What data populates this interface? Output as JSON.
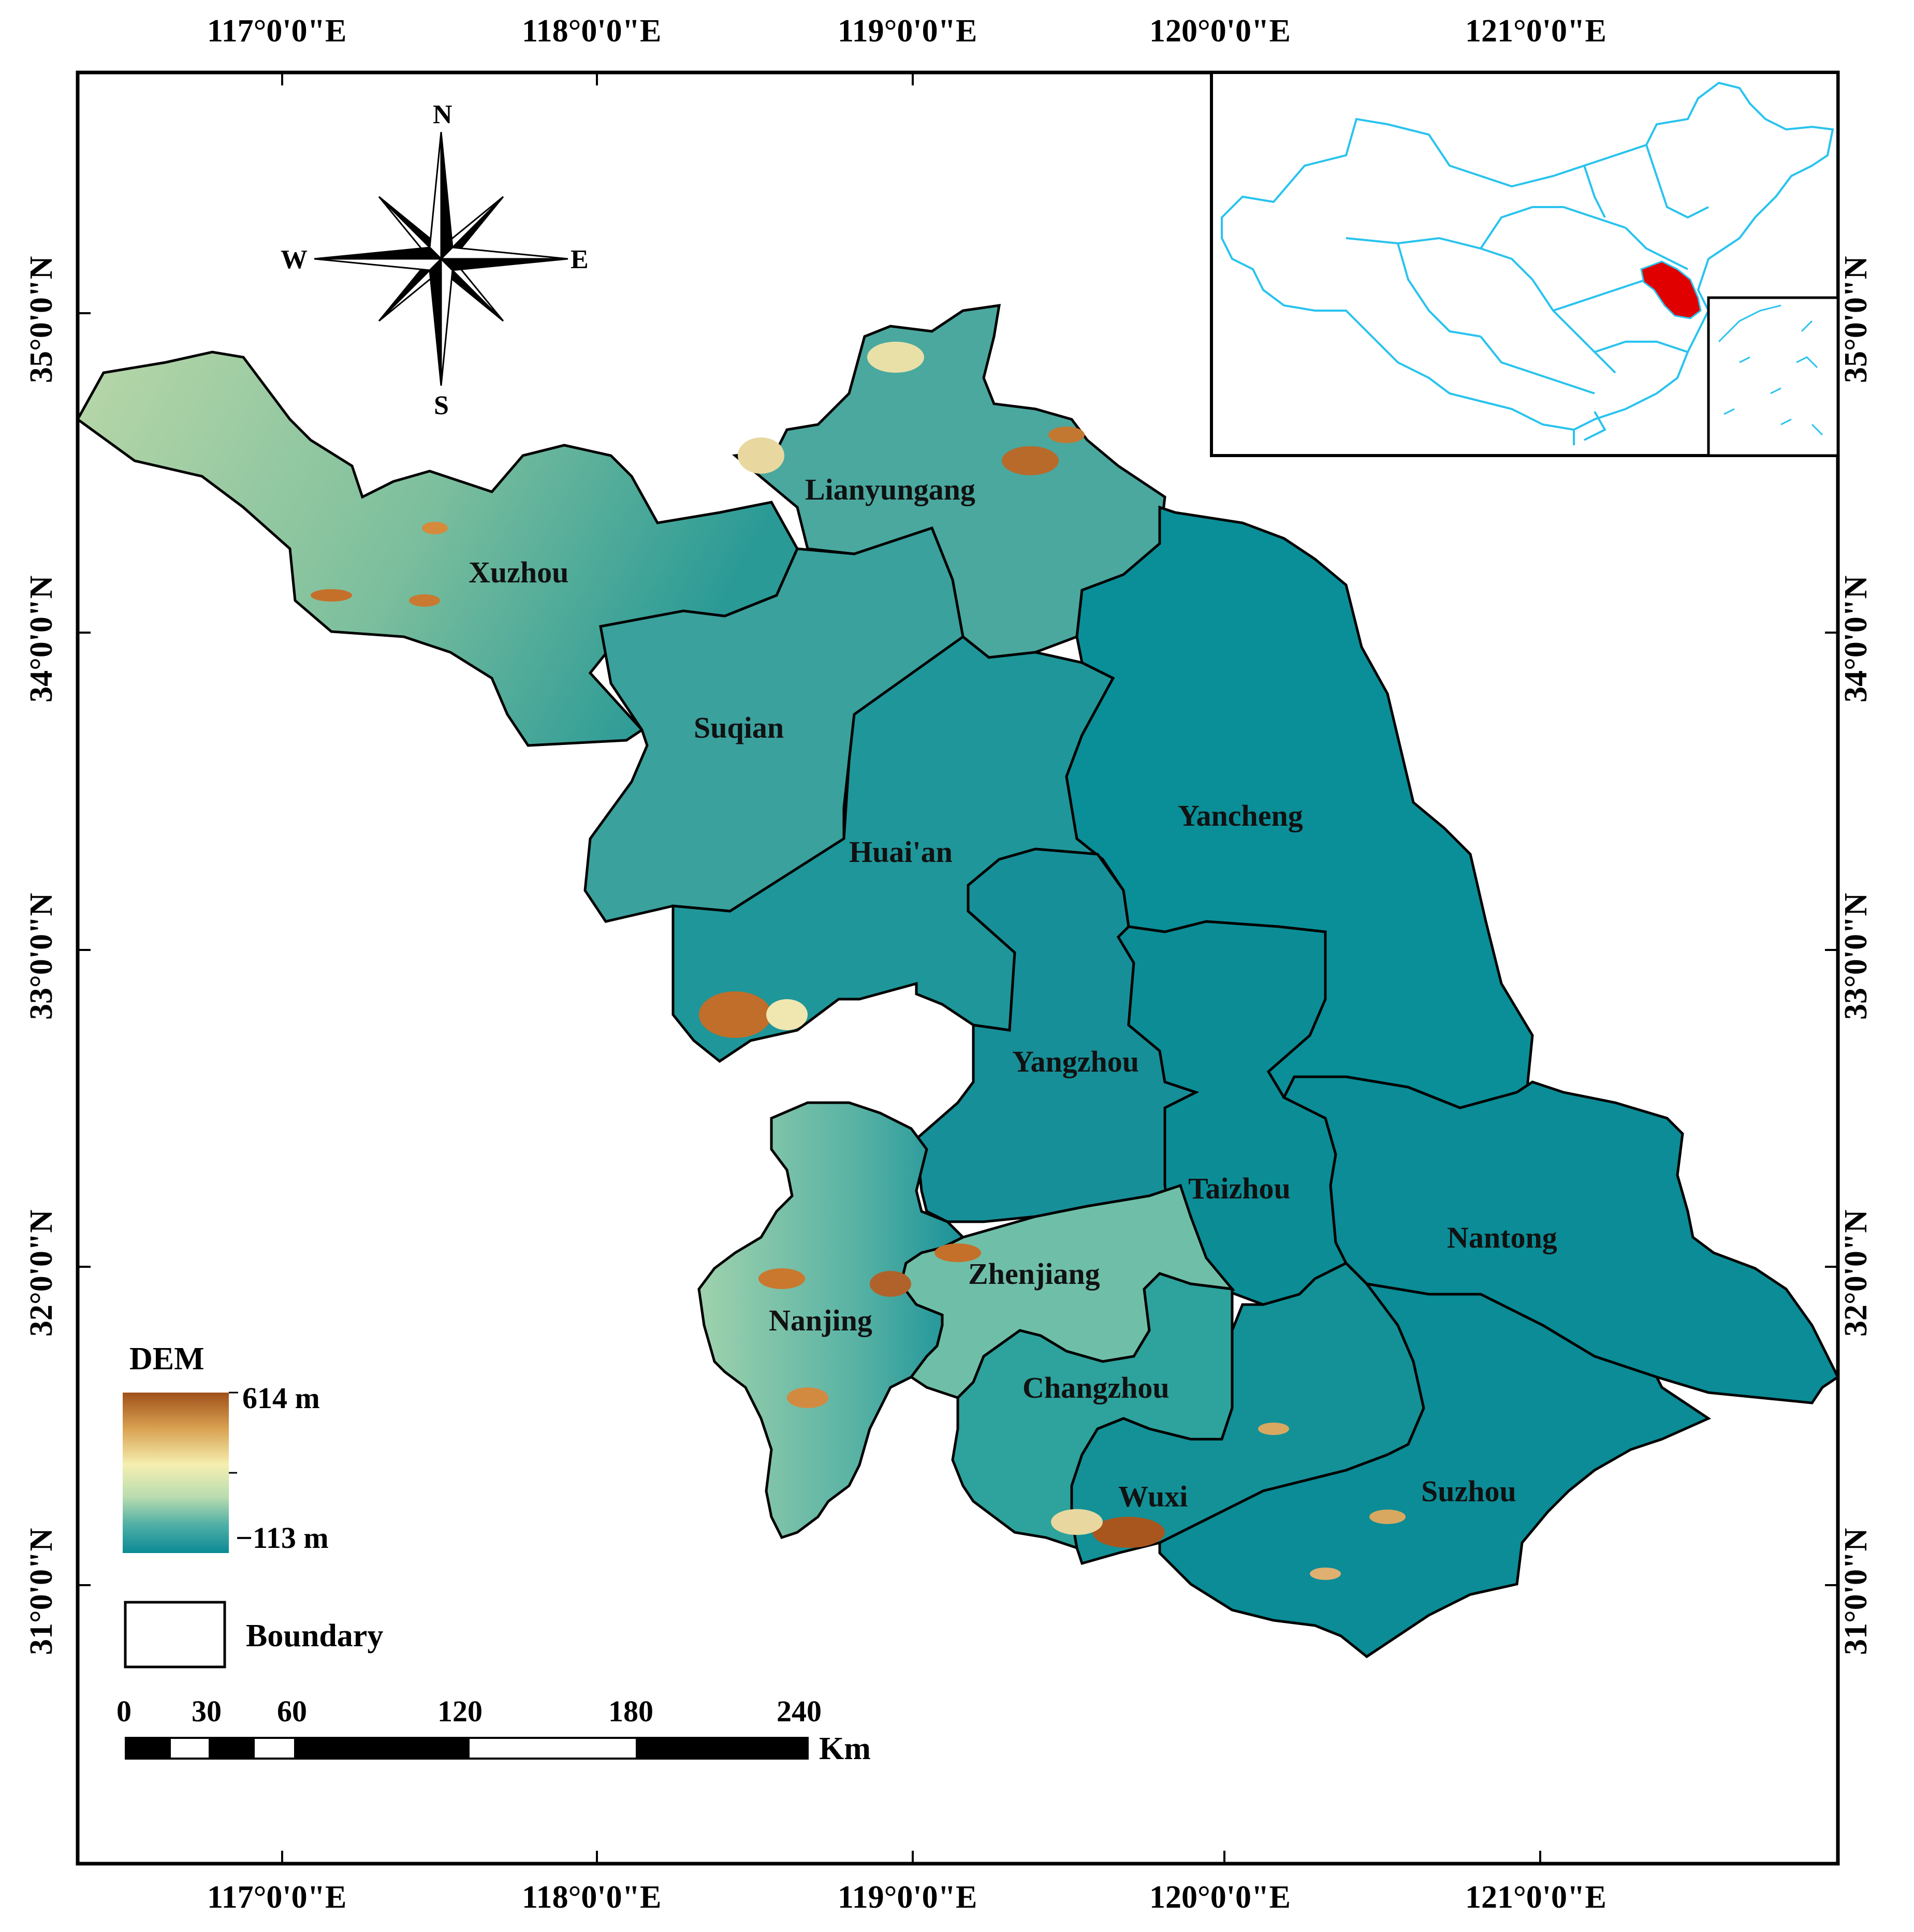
{
  "graticule": {
    "lon_labels": [
      "117°0'0\"E",
      "118°0'0\"E",
      "119°0'0\"E",
      "120°0'0\"E",
      "121°0'0\"E"
    ],
    "lat_labels": [
      "35°0'0\"N",
      "34°0'0\"N",
      "33°0'0\"N",
      "32°0'0\"N",
      "31°0'0\"N"
    ]
  },
  "cities": [
    {
      "id": "lianyungang",
      "name": "Lianyungang"
    },
    {
      "id": "xuzhou",
      "name": "Xuzhou"
    },
    {
      "id": "suqian",
      "name": "Suqian"
    },
    {
      "id": "huaian",
      "name": "Huai'an"
    },
    {
      "id": "yancheng",
      "name": "Yancheng"
    },
    {
      "id": "yangzhou",
      "name": "Yangzhou"
    },
    {
      "id": "taizhou",
      "name": "Taizhou"
    },
    {
      "id": "nantong",
      "name": "Nantong"
    },
    {
      "id": "zhenjiang",
      "name": "Zhenjiang"
    },
    {
      "id": "nanjing",
      "name": "Nanjing"
    },
    {
      "id": "changzhou",
      "name": "Changzhou"
    },
    {
      "id": "wuxi",
      "name": "Wuxi"
    },
    {
      "id": "suzhou",
      "name": "Suzhou"
    }
  ],
  "compass": {
    "n": "N",
    "s": "S",
    "e": "E",
    "w": "W"
  },
  "legend": {
    "dem_title": "DEM",
    "max_label": "614 m",
    "min_label": "−113 m",
    "boundary_label": "Boundary"
  },
  "scalebar": {
    "ticks": [
      "0",
      "30",
      "60",
      "120",
      "180",
      "240"
    ],
    "unit": "Km"
  },
  "colors": {
    "dem_high": "#a0501a",
    "dem_mid": "#f5efb0",
    "dem_low": "#0a8a95",
    "boundary": "#000000",
    "inset_lines": "#29c3ee",
    "inset_highlight": "#e00000"
  }
}
